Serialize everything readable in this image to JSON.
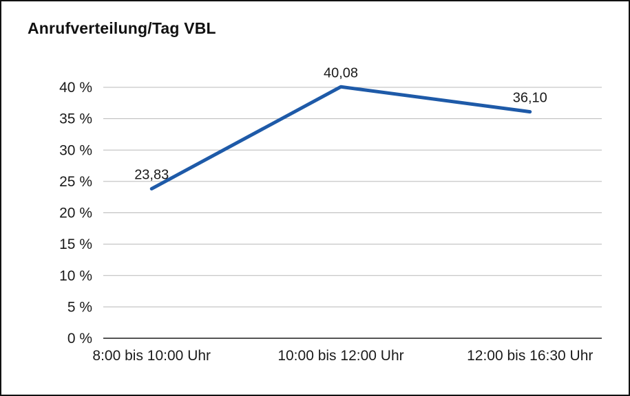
{
  "chart_data": {
    "type": "line",
    "title": "Anrufverteilung/Tag VBL",
    "categories": [
      "8:00 bis 10:00 Uhr",
      "10:00 bis 12:00 Uhr",
      "12:00 bis 16:30 Uhr"
    ],
    "values": [
      23.83,
      40.08,
      36.1
    ],
    "point_labels": [
      "23,83",
      "40,08",
      "36,10"
    ],
    "ylim": [
      0,
      40
    ],
    "ytick_values": [
      0,
      5,
      10,
      15,
      20,
      25,
      30,
      35,
      40
    ],
    "ytick_labels": [
      "0 %",
      "5 %",
      "10 %",
      "15 %",
      "20 %",
      "25 %",
      "30 %",
      "35 %",
      "40 %"
    ],
    "grid": true,
    "legend": "none",
    "colors": {
      "line": "#1e5aa8",
      "grid": "#b8b8b8",
      "axis": "#1a1a1a",
      "text": "#1a1a1a"
    }
  }
}
